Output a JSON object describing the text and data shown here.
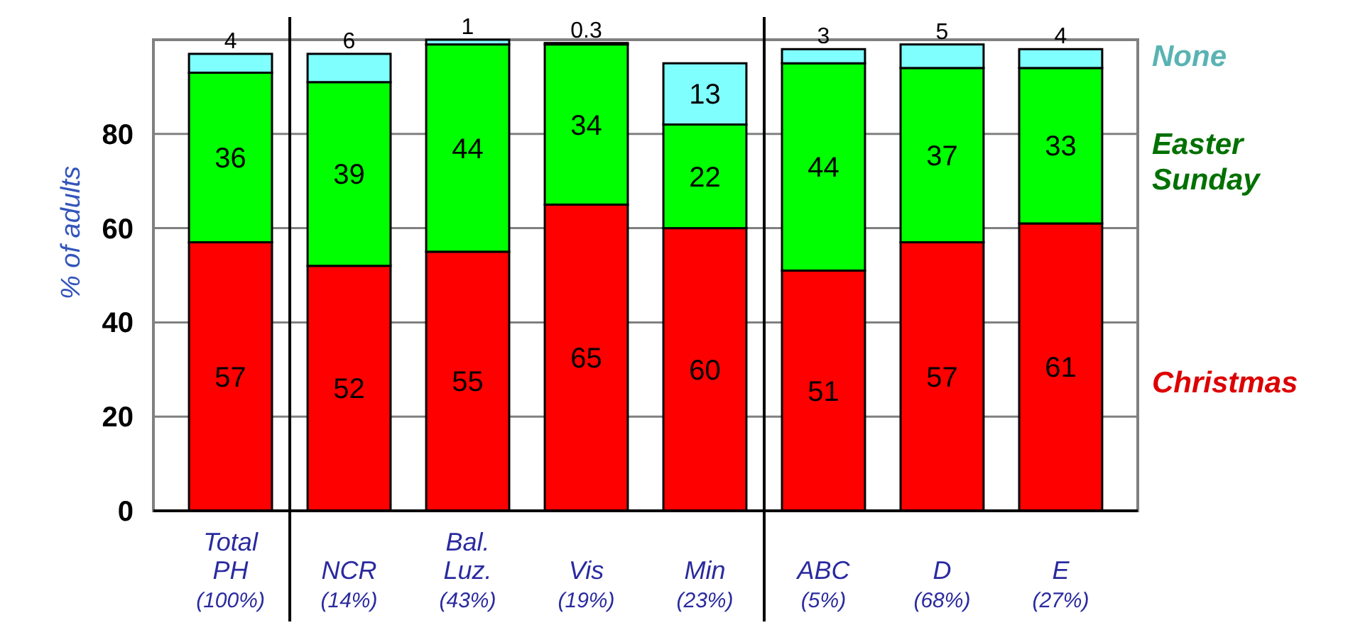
{
  "chart_data": {
    "type": "bar",
    "stacked": true,
    "ylabel": "% of adults",
    "categories": [
      "Total\nPH\n(100%)",
      "NCR\n(14%)",
      "Bal.\nLuz.\n(43%)",
      "Vis\n(19%)",
      "Min\n(23%)",
      "ABC\n(5%)",
      "D\n(68%)",
      "E\n(27%)"
    ],
    "series": [
      {
        "name": "Christmas",
        "color": "#ff0000",
        "values": [
          57,
          52,
          55,
          65,
          60,
          51,
          57,
          61
        ]
      },
      {
        "name": "Easter\nSunday",
        "color": "#00ff00",
        "values": [
          36,
          39,
          44,
          34,
          22,
          44,
          37,
          33
        ]
      },
      {
        "name": "None",
        "color": "#80ffff",
        "values": [
          4,
          6,
          1,
          0.3,
          13,
          3,
          5,
          4
        ]
      }
    ],
    "ylim": [
      0,
      100
    ],
    "yticks": [
      0,
      20,
      40,
      60,
      80
    ],
    "grid": "y",
    "legend": "right",
    "data_labels": true
  }
}
